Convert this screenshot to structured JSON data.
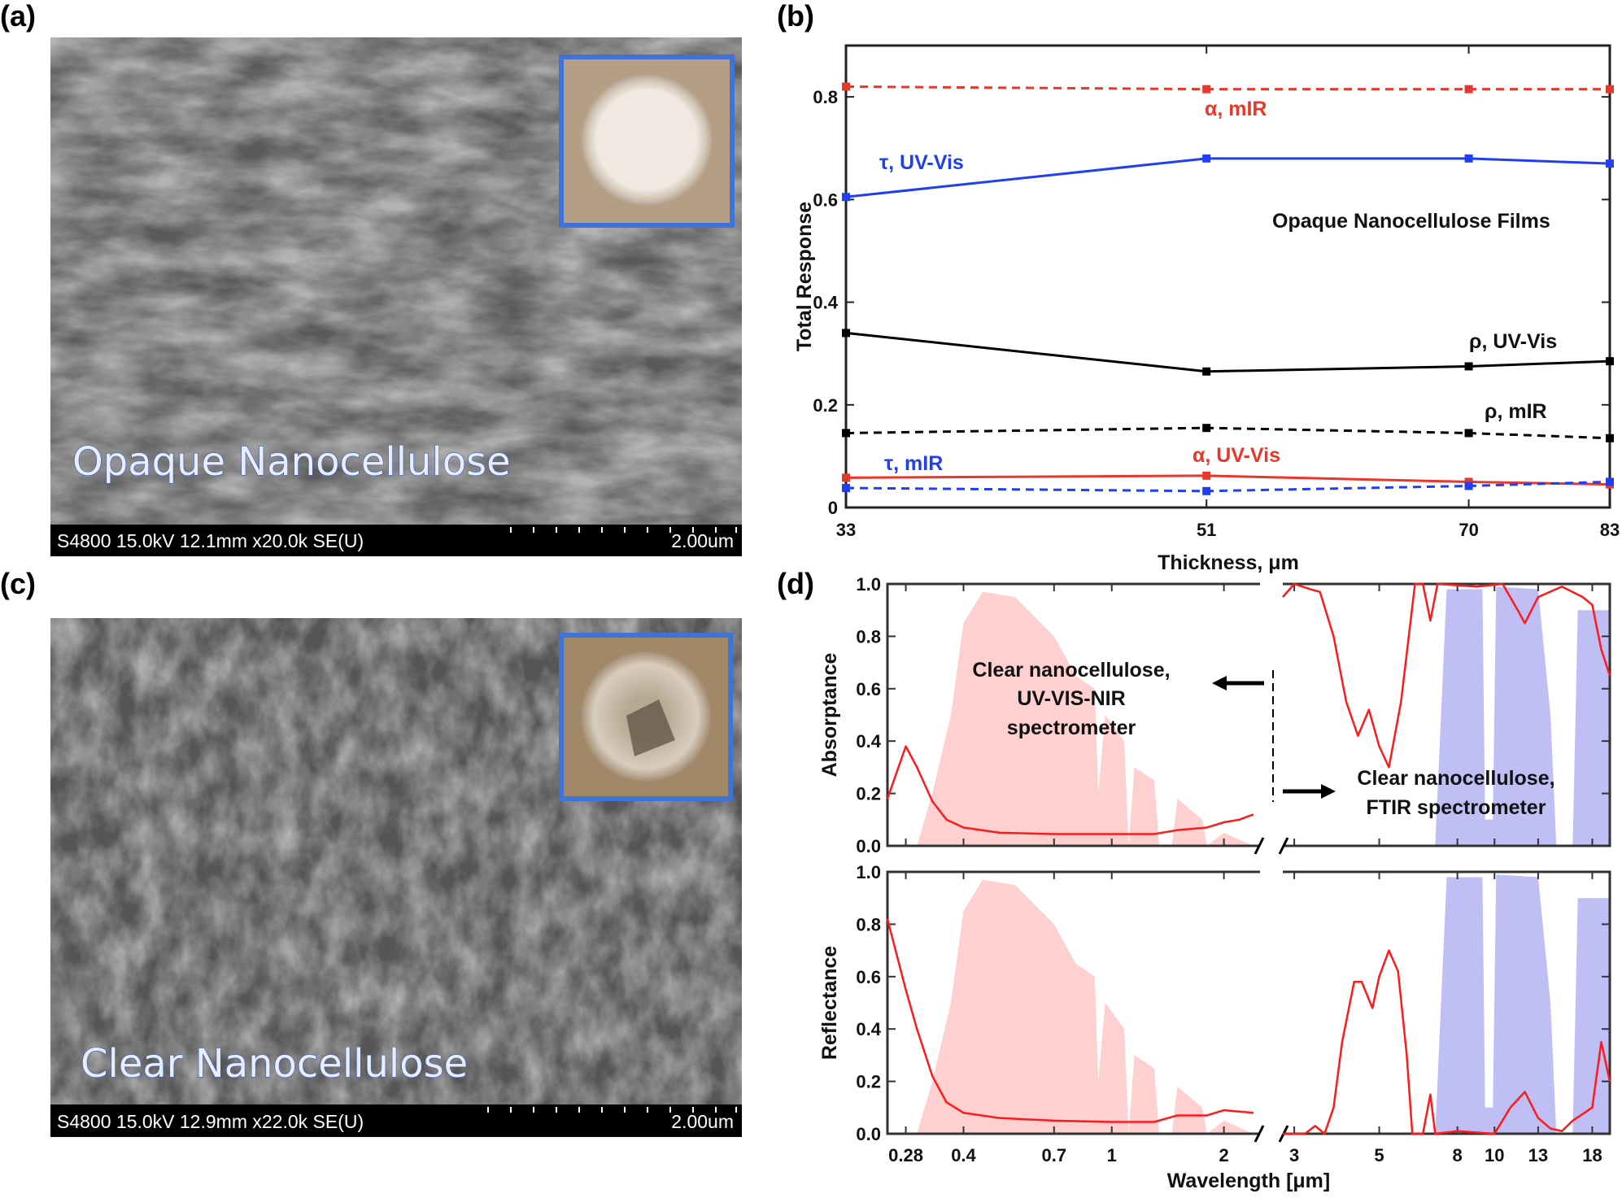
{
  "panels": {
    "a": {
      "label": "(a)",
      "title": "Opaque Nanocellulose",
      "info": "S4800 15.0kV 12.1mm x20.0k SE(U)",
      "scale": "2.00um"
    },
    "b": {
      "label": "(b)"
    },
    "c": {
      "label": "(c)",
      "title": "Clear Nanocellulose",
      "info": "S4800 15.0kV 12.9mm x22.0k SE(U)",
      "scale": "2.00um"
    },
    "d": {
      "label": "(d)"
    }
  },
  "chart_data": [
    {
      "type": "line",
      "panel": "b",
      "title": "",
      "annotation": "Opaque Nanocellulose Films",
      "xlabel": "Thickness, μm",
      "ylabel": "Total Response",
      "x": [
        33,
        51,
        70,
        83
      ],
      "xscale": "log",
      "xlim": [
        33,
        83
      ],
      "ylim": [
        0,
        0.9
      ],
      "xticks": [
        "33",
        "51",
        "70",
        "83"
      ],
      "yticks": [
        "0",
        "0.2",
        "0.4",
        "0.6",
        "0.8"
      ],
      "grid": false,
      "series": [
        {
          "name": "α, mIR",
          "color": "#e8372b",
          "dash": true,
          "values": [
            0.82,
            0.815,
            0.815,
            0.815
          ]
        },
        {
          "name": "τ, UV-Vis",
          "color": "#1f3ff0",
          "dash": false,
          "values": [
            0.605,
            0.68,
            0.68,
            0.67
          ]
        },
        {
          "name": "ρ, UV-Vis",
          "color": "#000000",
          "dash": false,
          "values": [
            0.34,
            0.265,
            0.275,
            0.285
          ]
        },
        {
          "name": "ρ, mIR",
          "color": "#000000",
          "dash": true,
          "values": [
            0.145,
            0.155,
            0.145,
            0.135
          ]
        },
        {
          "name": "α, UV-Vis",
          "color": "#e8372b",
          "dash": false,
          "values": [
            0.058,
            0.062,
            0.05,
            0.045
          ]
        },
        {
          "name": "τ, mIR",
          "color": "#1f3ff0",
          "dash": true,
          "values": [
            0.038,
            0.032,
            0.042,
            0.05
          ]
        }
      ]
    },
    {
      "type": "line",
      "panel": "d",
      "xlabel": "Wavelength [μm]",
      "xscale": "log",
      "x_segments": [
        [
          0.25,
          2.5
        ],
        [
          2.8,
          20
        ]
      ],
      "xticks": [
        "0.28",
        "0.4",
        "0.7",
        "1",
        "2",
        "3",
        "5",
        "8",
        "10",
        "13",
        "18"
      ],
      "yticks": [
        "0.0",
        "0.2",
        "0.4",
        "0.6",
        "0.8",
        "1.0"
      ],
      "ylim": [
        0,
        1
      ],
      "annotations": {
        "left": [
          "Clear nanocellulose,",
          "UV-VIS-NIR",
          "spectrometer"
        ],
        "right": [
          "Clear nanocellulose,",
          "FTIR spectrometer"
        ]
      },
      "colors": {
        "curve": "#ff1a1a",
        "solar": "#ffc8c8",
        "window": "#b4b4f5"
      },
      "solar_spectrum": [
        [
          0.3,
          0
        ],
        [
          0.33,
          0.2
        ],
        [
          0.37,
          0.5
        ],
        [
          0.4,
          0.85
        ],
        [
          0.45,
          0.97
        ],
        [
          0.55,
          0.95
        ],
        [
          0.7,
          0.8
        ],
        [
          0.8,
          0.65
        ],
        [
          0.9,
          0.6
        ],
        [
          0.92,
          0.2
        ],
        [
          0.96,
          0.5
        ],
        [
          1.08,
          0.4
        ],
        [
          1.11,
          0
        ],
        [
          1.15,
          0.3
        ],
        [
          1.3,
          0.25
        ],
        [
          1.34,
          0
        ],
        [
          1.45,
          0
        ],
        [
          1.5,
          0.18
        ],
        [
          1.75,
          0.1
        ],
        [
          1.8,
          0
        ],
        [
          2.0,
          0.05
        ],
        [
          2.4,
          0
        ]
      ],
      "atmospheric_window": [
        [
          7,
          0
        ],
        [
          7.5,
          0.98
        ],
        [
          9.3,
          0.98
        ],
        [
          9.45,
          0.1
        ],
        [
          9.9,
          0.1
        ],
        [
          10.1,
          0.99
        ],
        [
          13,
          0.98
        ],
        [
          14,
          0.5
        ],
        [
          14.5,
          0
        ],
        [
          16,
          0
        ],
        [
          16.5,
          0.9
        ],
        [
          20,
          0.9
        ]
      ],
      "subplots": [
        {
          "ylabel": "Absorptance",
          "series": [
            {
              "segment": 0,
              "points": [
                [
                  0.25,
                  0.18
                ],
                [
                  0.28,
                  0.38
                ],
                [
                  0.3,
                  0.3
                ],
                [
                  0.33,
                  0.17
                ],
                [
                  0.36,
                  0.1
                ],
                [
                  0.4,
                  0.07
                ],
                [
                  0.5,
                  0.05
                ],
                [
                  0.7,
                  0.045
                ],
                [
                  1,
                  0.045
                ],
                [
                  1.3,
                  0.045
                ],
                [
                  1.5,
                  0.06
                ],
                [
                  1.8,
                  0.07
                ],
                [
                  2,
                  0.09
                ],
                [
                  2.2,
                  0.1
                ],
                [
                  2.4,
                  0.12
                ]
              ]
            },
            {
              "segment": 1,
              "points": [
                [
                  2.8,
                  0.95
                ],
                [
                  3,
                  1.0
                ],
                [
                  3.3,
                  0.98
                ],
                [
                  3.5,
                  0.97
                ],
                [
                  3.8,
                  0.8
                ],
                [
                  4.1,
                  0.55
                ],
                [
                  4.4,
                  0.42
                ],
                [
                  4.7,
                  0.52
                ],
                [
                  5,
                  0.38
                ],
                [
                  5.3,
                  0.3
                ],
                [
                  5.7,
                  0.55
                ],
                [
                  6.2,
                  1.0
                ],
                [
                  6.5,
                  1.0
                ],
                [
                  6.8,
                  0.86
                ],
                [
                  7.1,
                  1.0
                ],
                [
                  9,
                  0.99
                ],
                [
                  10.5,
                  1.0
                ],
                [
                  11.5,
                  0.9
                ],
                [
                  12,
                  0.85
                ],
                [
                  13,
                  0.95
                ],
                [
                  15,
                  0.99
                ],
                [
                  17,
                  0.95
                ],
                [
                  18,
                  0.92
                ],
                [
                  19,
                  0.75
                ],
                [
                  20,
                  0.65
                ]
              ]
            }
          ]
        },
        {
          "ylabel": "Reflectance",
          "series": [
            {
              "segment": 0,
              "points": [
                [
                  0.25,
                  0.82
                ],
                [
                  0.28,
                  0.55
                ],
                [
                  0.3,
                  0.4
                ],
                [
                  0.33,
                  0.22
                ],
                [
                  0.36,
                  0.12
                ],
                [
                  0.4,
                  0.08
                ],
                [
                  0.5,
                  0.06
                ],
                [
                  0.7,
                  0.05
                ],
                [
                  1,
                  0.045
                ],
                [
                  1.3,
                  0.045
                ],
                [
                  1.5,
                  0.07
                ],
                [
                  1.8,
                  0.07
                ],
                [
                  2,
                  0.09
                ],
                [
                  2.4,
                  0.08
                ]
              ]
            },
            {
              "segment": 1,
              "points": [
                [
                  2.8,
                  0
                ],
                [
                  3.2,
                  0
                ],
                [
                  3.4,
                  0.03
                ],
                [
                  3.6,
                  0
                ],
                [
                  3.8,
                  0.1
                ],
                [
                  4.0,
                  0.35
                ],
                [
                  4.3,
                  0.58
                ],
                [
                  4.5,
                  0.58
                ],
                [
                  4.8,
                  0.48
                ],
                [
                  5.0,
                  0.6
                ],
                [
                  5.3,
                  0.7
                ],
                [
                  5.6,
                  0.62
                ],
                [
                  5.9,
                  0.3
                ],
                [
                  6.1,
                  0
                ],
                [
                  6.5,
                  0
                ],
                [
                  6.8,
                  0.15
                ],
                [
                  7.0,
                  0
                ],
                [
                  8,
                  0.01
                ],
                [
                  10,
                  0
                ],
                [
                  11,
                  0.1
                ],
                [
                  12,
                  0.16
                ],
                [
                  13,
                  0.06
                ],
                [
                  14,
                  0.02
                ],
                [
                  15,
                  0.01
                ],
                [
                  16,
                  0.05
                ],
                [
                  18,
                  0.1
                ],
                [
                  19,
                  0.35
                ],
                [
                  20,
                  0.2
                ]
              ]
            }
          ]
        }
      ]
    }
  ]
}
